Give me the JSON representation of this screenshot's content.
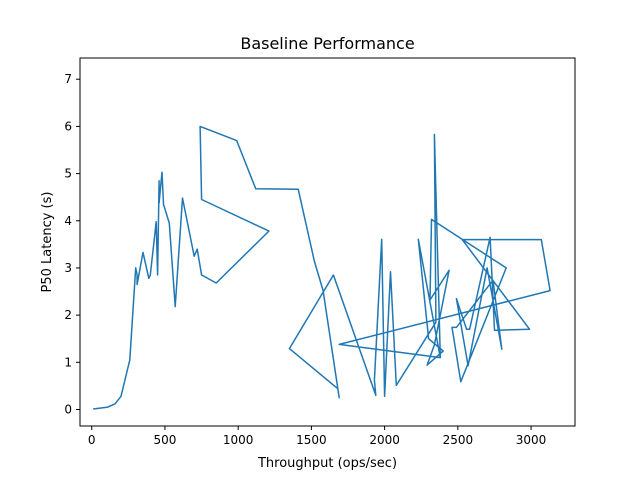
{
  "chart_data": {
    "type": "line",
    "title": "Baseline Performance",
    "xlabel": "Throughput (ops/sec)",
    "ylabel": "P50 Latency (s)",
    "xlim": [
      -80,
      3300
    ],
    "ylim": [
      -0.35,
      7.45
    ],
    "xticks": [
      0,
      500,
      1000,
      1500,
      2000,
      2500,
      3000
    ],
    "yticks": [
      0,
      1,
      2,
      3,
      4,
      5,
      6,
      7
    ],
    "grid": false,
    "line_color": "#1f77b4",
    "series": [
      {
        "x": [
          10,
          110,
          160,
          200,
          260,
          300,
          310,
          310,
          350,
          390,
          400,
          440,
          450,
          460,
          460,
          460,
          480,
          490,
          530,
          570,
          620,
          700,
          720,
          750,
          850,
          1210,
          750,
          740,
          990,
          1120,
          1410,
          1520,
          1580,
          1690,
          1680,
          1350,
          1650,
          1940,
          1930,
          1980,
          2000,
          2040,
          2080,
          2350,
          2340,
          2380,
          2230,
          2300,
          2400,
          2290,
          2340,
          2440,
          2310,
          2320,
          2830,
          2520,
          2460,
          2490,
          2740,
          2800,
          2700,
          2570,
          2490,
          2560,
          2580,
          2720,
          2750,
          2990,
          2530,
          3070,
          3130,
          1690,
          2380
        ],
        "y": [
          0.01,
          0.05,
          0.12,
          0.28,
          1.05,
          3.0,
          2.85,
          2.65,
          3.33,
          2.78,
          2.85,
          3.98,
          2.85,
          4.85,
          4.65,
          4.38,
          5.03,
          4.35,
          3.95,
          2.18,
          4.48,
          3.25,
          3.4,
          2.85,
          2.68,
          3.78,
          4.45,
          6.0,
          5.7,
          4.68,
          4.67,
          3.15,
          2.52,
          0.25,
          0.44,
          1.29,
          2.85,
          0.3,
          0.62,
          3.61,
          0.28,
          2.92,
          0.51,
          1.85,
          5.83,
          1.1,
          3.61,
          1.5,
          1.24,
          0.94,
          1.37,
          2.95,
          2.32,
          4.03,
          3.0,
          0.59,
          1.74,
          1.74,
          2.74,
          1.28,
          3.0,
          0.93,
          2.35,
          1.7,
          1.7,
          3.65,
          1.68,
          1.7,
          3.6,
          3.6,
          2.52,
          1.38,
          1.1
        ]
      }
    ]
  }
}
